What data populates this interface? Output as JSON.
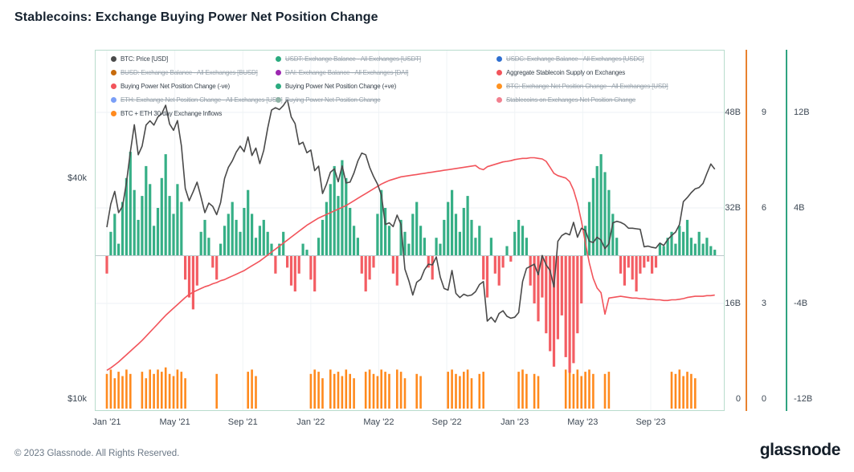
{
  "title": "Stablecoins: Exchange Buying Power Net Position Change",
  "footer": {
    "copyright": "© 2023 Glassnode. All Rights Reserved.",
    "brand": "glassnode"
  },
  "legend": {
    "items": [
      {
        "id": "btc-price",
        "label": "BTC: Price [USD]",
        "color": "#4a4a4a",
        "active": true
      },
      {
        "id": "usdt-balance",
        "label": "USDT: Exchange Balance - All Exchanges [USDT]",
        "color": "#2bab7f",
        "active": false
      },
      {
        "id": "usdc-balance",
        "label": "USDC: Exchange Balance - All Exchanges [USDC]",
        "color": "#2f6fd0",
        "active": false
      },
      {
        "id": "busd-balance",
        "label": "BUSD: Exchange Balance - All Exchanges [BUSD]",
        "color": "#c76b0c",
        "active": false
      },
      {
        "id": "dai-balance",
        "label": "DAI: Exchange Balance - All Exchanges [DAI]",
        "color": "#9c27b0",
        "active": false
      },
      {
        "id": "aggregate-stablecoin-supply",
        "label": "Aggregate Stablecoin Supply on Exchanges",
        "color": "#f2545b",
        "active": true
      },
      {
        "id": "buying-power-negative",
        "label": "Buying Power Net Position Change (-ve)",
        "color": "#f2545b",
        "active": true
      },
      {
        "id": "buying-power-positive",
        "label": "Buying Power Net Position Change (+ve)",
        "color": "#2bab7f",
        "active": true
      },
      {
        "id": "btc-net-position-change",
        "label": "BTC: Exchange Net Position Change - All Exchanges [USD]",
        "color": "#ff9220",
        "active": false
      },
      {
        "id": "eth-net-position-change",
        "label": "ETH: Exchange Net Position Change - All Exchanges [USD]",
        "color": "#7b9ff7",
        "active": false
      },
      {
        "id": "buying-power-npc",
        "label": "Buying Power Net Position Change",
        "color": "#8fb3a6",
        "active": false
      },
      {
        "id": "stablecoins-npc",
        "label": "Stablecoins on Exchanges Net Position Change",
        "color": "#f2808f",
        "active": false
      },
      {
        "id": "btc-eth-30d-inflows",
        "label": "BTC + ETH 30-day Exchange Inflows",
        "color": "#ff8a1e",
        "active": true
      }
    ]
  },
  "chart_data": {
    "type": "composite",
    "title": "Stablecoins: Exchange Buying Power Net Position Change",
    "sampling": "weekly",
    "time_range": {
      "start": "Jan 2021",
      "end": "Dec 2023",
      "points": 156
    },
    "x_axis": {
      "ticks": [
        {
          "label": "Jan '21",
          "month": 0
        },
        {
          "label": "May '21",
          "month": 4
        },
        {
          "label": "Sep '21",
          "month": 8
        },
        {
          "label": "Jan '22",
          "month": 12
        },
        {
          "label": "May '22",
          "month": 16
        },
        {
          "label": "Sep '22",
          "month": 20
        },
        {
          "label": "Jan '23",
          "month": 24
        },
        {
          "label": "May '23",
          "month": 28
        },
        {
          "label": "Sep '23",
          "month": 32
        }
      ]
    },
    "left_axis": {
      "name": "btc-price-axis",
      "scale": "log",
      "ticks": [
        {
          "label": "$40k",
          "value_k": 40
        },
        {
          "label": "$10k",
          "value_k": 10
        }
      ]
    },
    "right_axes": [
      {
        "name": "aggregate-stablecoin-supply-axis",
        "range": [
          0,
          48
        ],
        "ticks": [
          {
            "label": "48B",
            "value": 48
          },
          {
            "label": "32B",
            "value": 32
          },
          {
            "label": "16B",
            "value": 16
          },
          {
            "label": "0",
            "value": 0
          }
        ]
      },
      {
        "name": "exchange-inflows-axis",
        "range": [
          0,
          9
        ],
        "spine_color": "#e8822f",
        "ticks": [
          {
            "label": "9",
            "value": 9
          },
          {
            "label": "6",
            "value": 6
          },
          {
            "label": "3",
            "value": 3
          },
          {
            "label": "0",
            "value": 0
          }
        ]
      },
      {
        "name": "net-position-change-axis",
        "range": [
          -12,
          12
        ],
        "spine_color": "#2fa380",
        "ticks": [
          {
            "label": "12B",
            "value": 12
          },
          {
            "label": "4B",
            "value": 4
          },
          {
            "label": "-4B",
            "value": -4
          },
          {
            "label": "-12B",
            "value": -12
          }
        ]
      }
    ],
    "series": [
      {
        "id": "btc-price",
        "type": "line",
        "axis": "left-log",
        "unit": "USD (thousands)",
        "color": "#4a4a4a",
        "weekly_values": [
          29.4,
          34.0,
          36.8,
          32.2,
          33.5,
          38.9,
          47.2,
          55.9,
          46.3,
          48.9,
          55.8,
          57.3,
          55.8,
          58.7,
          59.9,
          63.2,
          56.2,
          54.0,
          57.4,
          49.0,
          37.5,
          34.7,
          36.7,
          39.0,
          35.5,
          32.2,
          34.2,
          33.5,
          31.8,
          34.3,
          39.9,
          42.8,
          44.6,
          47.1,
          48.9,
          47.2,
          51.8,
          46.1,
          48.3,
          43.8,
          47.6,
          54.7,
          61.3,
          62.2,
          61.5,
          63.1,
          65.5,
          58.7,
          56.3,
          49.4,
          50.1,
          46.9,
          47.7,
          41.9,
          43.1,
          36.3,
          38.5,
          41.5,
          42.4,
          39.1,
          43.2,
          38.8,
          39.0,
          41.3,
          44.5,
          46.8,
          46.3,
          42.8,
          40.4,
          38.5,
          36.0,
          29.9,
          30.2,
          29.5,
          31.7,
          29.9,
          22.6,
          21.0,
          19.2,
          20.8,
          21.2,
          22.5,
          23.3,
          23.2,
          24.4,
          21.5,
          20.0,
          19.8,
          22.4,
          19.4,
          18.9,
          19.3,
          19.1,
          19.2,
          19.6,
          20.5,
          20.9,
          16.3,
          16.7,
          16.2,
          17.1,
          17.4,
          16.8,
          16.6,
          16.7,
          17.2,
          20.9,
          22.7,
          23.0,
          23.3,
          21.8,
          24.6,
          23.2,
          22.4,
          20.2,
          26.9,
          27.9,
          28.3,
          28.0,
          30.3,
          27.6,
          29.2,
          28.8,
          26.9,
          26.7,
          27.6,
          27.1,
          25.7,
          26.5,
          30.2,
          30.5,
          30.3,
          29.9,
          29.2,
          29.2,
          29.1,
          29.0,
          26.0,
          26.1,
          25.9,
          25.8,
          26.6,
          26.2,
          27.2,
          27.9,
          28.5,
          29.9,
          34.5,
          35.4,
          36.5,
          37.4,
          37.7,
          38.7,
          41.2,
          43.7,
          42.3
        ]
      },
      {
        "id": "aggregate-stablecoin-supply",
        "type": "line",
        "axis": "right-0",
        "unit": "USD billions",
        "color": "#f2545b",
        "weekly_values": [
          4.8,
          5.2,
          5.7,
          6.2,
          6.8,
          7.4,
          8.0,
          8.6,
          9.2,
          9.8,
          10.5,
          11.2,
          11.9,
          12.6,
          13.3,
          14.0,
          14.6,
          15.2,
          15.8,
          16.4,
          17.0,
          17.5,
          17.9,
          18.2,
          18.5,
          18.8,
          19.0,
          19.3,
          19.5,
          19.8,
          20.0,
          20.3,
          20.6,
          20.9,
          21.2,
          21.5,
          21.9,
          22.3,
          22.7,
          23.1,
          23.6,
          24.1,
          24.6,
          25.1,
          25.6,
          26.1,
          26.6,
          27.1,
          27.6,
          28.1,
          28.6,
          29.1,
          29.5,
          29.9,
          30.3,
          30.6,
          30.9,
          31.2,
          31.5,
          31.8,
          32.1,
          32.4,
          32.8,
          33.2,
          33.6,
          34.0,
          34.4,
          34.8,
          35.2,
          35.6,
          36.0,
          36.3,
          36.6,
          36.8,
          37.0,
          37.2,
          37.3,
          37.4,
          37.5,
          37.6,
          37.7,
          37.8,
          37.9,
          38.0,
          38.1,
          38.2,
          38.3,
          38.4,
          38.5,
          38.6,
          38.7,
          38.8,
          38.9,
          39.0,
          39.1,
          38.6,
          38.4,
          38.9,
          39.1,
          39.3,
          39.5,
          39.7,
          39.8,
          39.9,
          40.1,
          40.2,
          40.3,
          40.3,
          40.4,
          40.4,
          40.3,
          40.2,
          39.8,
          38.8,
          37.8,
          37.4,
          37.2,
          37.0,
          36.4,
          35.0,
          32.8,
          29.8,
          26.2,
          22.8,
          20.2,
          18.6,
          17.8,
          14.2,
          16.9,
          17.0,
          17.1,
          17.2,
          17.1,
          17.0,
          16.9,
          16.9,
          16.8,
          16.8,
          16.7,
          16.7,
          16.6,
          16.6,
          16.5,
          16.5,
          16.6,
          16.6,
          16.7,
          16.8,
          17.0,
          17.1,
          17.2,
          17.2,
          17.2,
          17.3,
          17.3,
          17.4
        ]
      },
      {
        "id": "buying-power-net-position-change",
        "type": "bar",
        "axis": "right-2",
        "unit": "USD billions",
        "color_positive": "#2bab7f",
        "color_negative": "#f2545b",
        "weekly_values": [
          -1.5,
          2.0,
          3.5,
          1.0,
          4.5,
          6.5,
          8.7,
          5.5,
          3.0,
          5.0,
          7.5,
          6.0,
          2.5,
          4.0,
          6.5,
          8.5,
          5.0,
          3.5,
          6.0,
          4.5,
          -2.0,
          -3.5,
          -4.5,
          -2.5,
          2.0,
          3.0,
          1.5,
          -1.0,
          -2.0,
          1.0,
          2.5,
          3.5,
          4.5,
          3.0,
          2.0,
          4.0,
          5.5,
          3.5,
          1.5,
          2.5,
          3.0,
          2.0,
          1.0,
          -1.5,
          1.0,
          2.0,
          -1.0,
          -2.5,
          -3.0,
          -1.5,
          1.0,
          0.5,
          -2.0,
          -3.0,
          1.5,
          3.0,
          4.5,
          6.0,
          7.5,
          5.0,
          8.0,
          6.5,
          4.0,
          2.5,
          1.5,
          -1.5,
          -3.0,
          -2.0,
          -1.0,
          3.5,
          5.5,
          4.0,
          2.5,
          -1.5,
          -2.5,
          3.0,
          2.0,
          1.0,
          3.5,
          4.5,
          2.5,
          1.5,
          -1.0,
          -2.0,
          1.5,
          1.0,
          3.0,
          4.5,
          5.5,
          3.5,
          2.0,
          4.0,
          5.0,
          3.0,
          1.5,
          2.5,
          -2.0,
          -3.5,
          1.5,
          -1.5,
          -2.5,
          -1.0,
          0.8,
          -0.5,
          2.0,
          3.0,
          2.5,
          1.5,
          -2.5,
          -4.0,
          -5.5,
          -3.5,
          -6.5,
          -8.0,
          -9.3,
          -7.0,
          -5.0,
          -8.5,
          -9.8,
          -9.0,
          -6.5,
          -4.0,
          2.5,
          4.5,
          6.5,
          7.5,
          8.5,
          7.0,
          5.5,
          3.5,
          1.5,
          -1.5,
          -2.5,
          -1.0,
          -2.0,
          -3.0,
          -1.5,
          -1.0,
          -0.5,
          -1.5,
          -1.0,
          1.0,
          0.8,
          1.5,
          2.0,
          1.0,
          2.5,
          2.0,
          3.0,
          1.5,
          1.0,
          2.0,
          1.0,
          1.5,
          0.8,
          0.5
        ]
      },
      {
        "id": "btc-eth-30d-inflows",
        "type": "bar",
        "axis": "right-1",
        "unit": "USD billions",
        "color": "#ff8a1e",
        "weekly_values": [
          0.8,
          0.9,
          0.7,
          0.85,
          0.75,
          0.9,
          0.8,
          0,
          0,
          0.85,
          0.7,
          0.9,
          0.8,
          0.9,
          0.85,
          0.95,
          0.8,
          0.75,
          0.9,
          0.85,
          0.7,
          0,
          0,
          0,
          0,
          0,
          0,
          0,
          0.8,
          0,
          0,
          0,
          0,
          0,
          0,
          0,
          0.85,
          0.9,
          0.75,
          0,
          0,
          0,
          0,
          0,
          0,
          0,
          0,
          0,
          0,
          0,
          0,
          0,
          0.8,
          0.9,
          0.85,
          0.7,
          0,
          0.9,
          0.8,
          0.85,
          0.75,
          0.9,
          0.8,
          0.7,
          0,
          0,
          0.85,
          0.9,
          0.8,
          0.75,
          0.9,
          0.85,
          0.8,
          0,
          0.9,
          0.85,
          0.7,
          0,
          0,
          0.8,
          0.75,
          0,
          0,
          0,
          0,
          0,
          0,
          0.85,
          0.9,
          0.8,
          0.75,
          0.85,
          0.9,
          0.7,
          0,
          0.8,
          0.85,
          0,
          0,
          0,
          0,
          0,
          0,
          0,
          0,
          0.85,
          0.9,
          0.8,
          0,
          0.8,
          0.75,
          0,
          0,
          0,
          0,
          0,
          0,
          0.9,
          0.85,
          0.8,
          0.9,
          0.75,
          0.85,
          0.9,
          0.8,
          0,
          0,
          0.8,
          0.85,
          0,
          0,
          0,
          0,
          0,
          0,
          0,
          0,
          0,
          0,
          0,
          0,
          0,
          0,
          0,
          0.85,
          0.8,
          0.9,
          0.75,
          0.85,
          0.8,
          0.7,
          0,
          0,
          0,
          0,
          0
        ]
      }
    ]
  }
}
